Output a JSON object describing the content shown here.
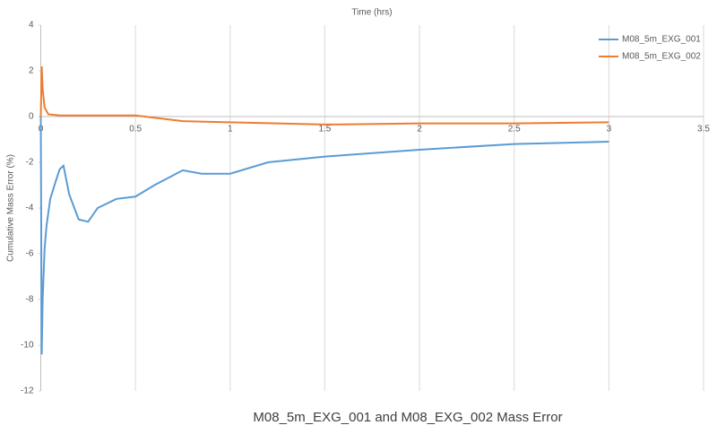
{
  "chart_data": {
    "type": "line",
    "title": "M08_5m_EXG_001 and M08_EXG_002 Mass Error",
    "x_label": "Time (hrs)",
    "y_label": "Cumulative Mass Error (%)",
    "xlim": [
      0,
      3.5
    ],
    "xticks": [
      0,
      0.5,
      1,
      1.5,
      2,
      2.5,
      3,
      3.5
    ],
    "ylim": [
      -12,
      4
    ],
    "yticks": [
      4,
      2,
      0,
      -2,
      -4,
      -6,
      -8,
      -10,
      -12
    ],
    "grid": "vertical",
    "legend": "top-right",
    "series": [
      {
        "name": "M08_5m_EXG_001",
        "color": "#5b9bd5",
        "x": [
          0,
          0.005,
          0.01,
          0.02,
          0.03,
          0.05,
          0.08,
          0.1,
          0.12,
          0.15,
          0.2,
          0.25,
          0.3,
          0.4,
          0.5,
          0.6,
          0.75,
          0.85,
          1,
          1.2,
          1.5,
          2,
          2.5,
          3
        ],
        "values": [
          0,
          -10.4,
          -8,
          -5.8,
          -4.8,
          -3.6,
          -2.8,
          -2.3,
          -2.15,
          -3.4,
          -4.5,
          -4.6,
          -4.0,
          -3.6,
          -3.5,
          -3.0,
          -2.35,
          -2.5,
          -2.5,
          -2.0,
          -1.75,
          -1.45,
          -1.2,
          -1.1
        ]
      },
      {
        "name": "M08_5m_EXG_002",
        "color": "#ed7d31",
        "x": [
          0,
          0.005,
          0.01,
          0.02,
          0.04,
          0.1,
          0.25,
          0.5,
          0.75,
          1,
          1.5,
          2,
          2.5,
          3
        ],
        "values": [
          0,
          2.2,
          1.2,
          0.4,
          0.1,
          0.05,
          0.05,
          0.05,
          -0.2,
          -0.25,
          -0.35,
          -0.3,
          -0.3,
          -0.25
        ]
      }
    ]
  }
}
